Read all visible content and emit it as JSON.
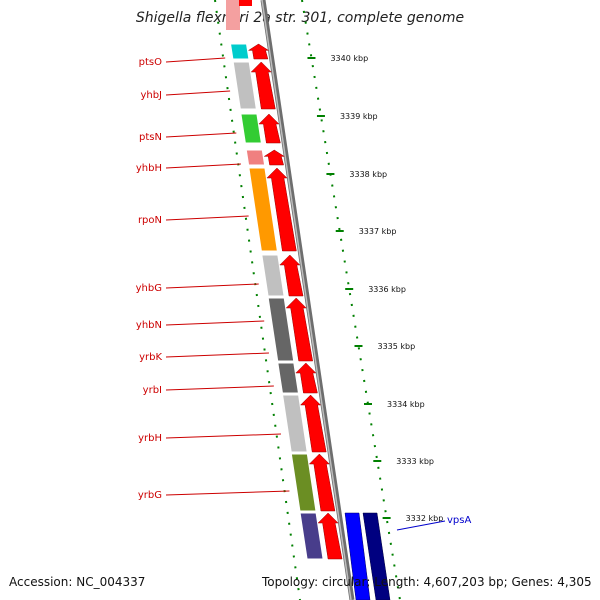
{
  "title": "Shigella flexneri 2a str. 301, complete genome",
  "footer": {
    "accession": "Accession: NC_004337",
    "summary": "Topology: circular; Length: 4,607,203 bp; Genes: 4,305"
  },
  "colors": {
    "forward_strand_cds": "#ff0000",
    "reverse_strand_cds": "#0000cc",
    "backbone": "#808080",
    "tick": "#008000"
  },
  "scale_ticks": [
    "3340 kbp",
    "3339 kbp",
    "3338 kbp",
    "3337 kbp",
    "3336 kbp",
    "3335 kbp",
    "3334 kbp",
    "3333 kbp",
    "3332 kbp"
  ],
  "genes": [
    {
      "name": "ptsO",
      "strand": "forward",
      "cog_color": "#00cccc"
    },
    {
      "name": "yhbJ",
      "strand": "forward",
      "cog_color": "#c0c0c0"
    },
    {
      "name": "ptsN",
      "strand": "forward",
      "cog_color": "#33cc33"
    },
    {
      "name": "yhbH",
      "strand": "forward",
      "cog_color": "#f08080"
    },
    {
      "name": "rpoN",
      "strand": "forward",
      "cog_color": "#ff9900"
    },
    {
      "name": "yhbG",
      "strand": "forward",
      "cog_color": "#c0c0c0"
    },
    {
      "name": "yhbN",
      "strand": "forward",
      "cog_color": "#666666"
    },
    {
      "name": "yrbK",
      "strand": "forward",
      "cog_color": "#666666"
    },
    {
      "name": "yrbI",
      "strand": "forward",
      "cog_color": "#c0c0c0"
    },
    {
      "name": "yrbH",
      "strand": "forward",
      "cog_color": "#6b8e23"
    },
    {
      "name": "yrbG",
      "strand": "forward",
      "cog_color": "#483d8b"
    },
    {
      "name": "vpsA",
      "strand": "reverse",
      "cog_color": "#0000ff"
    }
  ]
}
